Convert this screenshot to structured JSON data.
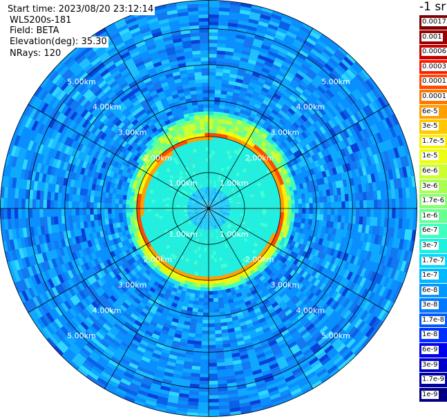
{
  "header": {
    "start_time": "Start time: 2023/08/20 23:12:14",
    "instrument": "WLS200s-181",
    "field": "Field: BETA",
    "elevation": "Elevation(deg): 35.30",
    "nrays": "NRays: 120"
  },
  "colorbar": {
    "unit": "-1 sr",
    "labels": [
      "0.0017",
      "0.001",
      "0.0006",
      "0.0003",
      "0.00017",
      "0.0001",
      "6e-5",
      "3e-5",
      "1.7e-5",
      "1e-5",
      "6e-6",
      "3e-6",
      "1.7e-6",
      "1e-6",
      "6e-7",
      "3e-7",
      "1.7e-7",
      "1e-7",
      "6e-8",
      "3e-8",
      "1.7e-8",
      "1e-8",
      "6e-9",
      "3e-9",
      "1.7e-9",
      "1e-9"
    ],
    "colors": [
      "#7f0000",
      "#9a0000",
      "#c80000",
      "#ff1a00",
      "#ff4a00",
      "#ff7800",
      "#ffa000",
      "#ffc800",
      "#ffee00",
      "#ecff10",
      "#ccff30",
      "#a8ff50",
      "#86ff70",
      "#66ff90",
      "#40ffc0",
      "#20f0e0",
      "#00d8ff",
      "#00b8ff",
      "#0098ff",
      "#0078ff",
      "#0058ff",
      "#0030ff",
      "#0000f0",
      "#0000c8",
      "#0000a0",
      "#000080"
    ]
  },
  "chart_data": {
    "type": "heatmap",
    "projection": "polar (PPI scan)",
    "field": "BETA",
    "elevation_deg": 35.3,
    "nrays": 120,
    "range_rings_km": [
      1.0,
      2.0,
      3.0,
      4.0,
      5.0
    ],
    "ring_labels": [
      "1.00km",
      "2.00km",
      "3.00km",
      "4.00km",
      "5.00km"
    ],
    "max_range_km": 5.8,
    "radial_lines_deg": [
      0,
      30,
      60,
      90,
      120,
      150,
      180,
      210,
      240,
      270,
      300,
      330
    ],
    "scale": "log",
    "value_range": [
      "1e-9",
      "0.0017"
    ],
    "features": [
      {
        "name": "background",
        "range_km": [
          2.4,
          5.8
        ],
        "level": "3e-8 to 1e-7"
      },
      {
        "name": "inner disc",
        "range_km": [
          0.0,
          1.95
        ],
        "level": "3e-7"
      },
      {
        "name": "center",
        "range_km": [
          0.0,
          0.6
        ],
        "level": "1e-7"
      },
      {
        "name": "bright ring",
        "range_km": [
          1.95,
          2.05
        ],
        "level": "1e-5 to 0.0001"
      },
      {
        "name": "halo",
        "range_km": [
          2.05,
          2.3
        ],
        "level": "1.7e-6 to 3e-5"
      }
    ]
  }
}
